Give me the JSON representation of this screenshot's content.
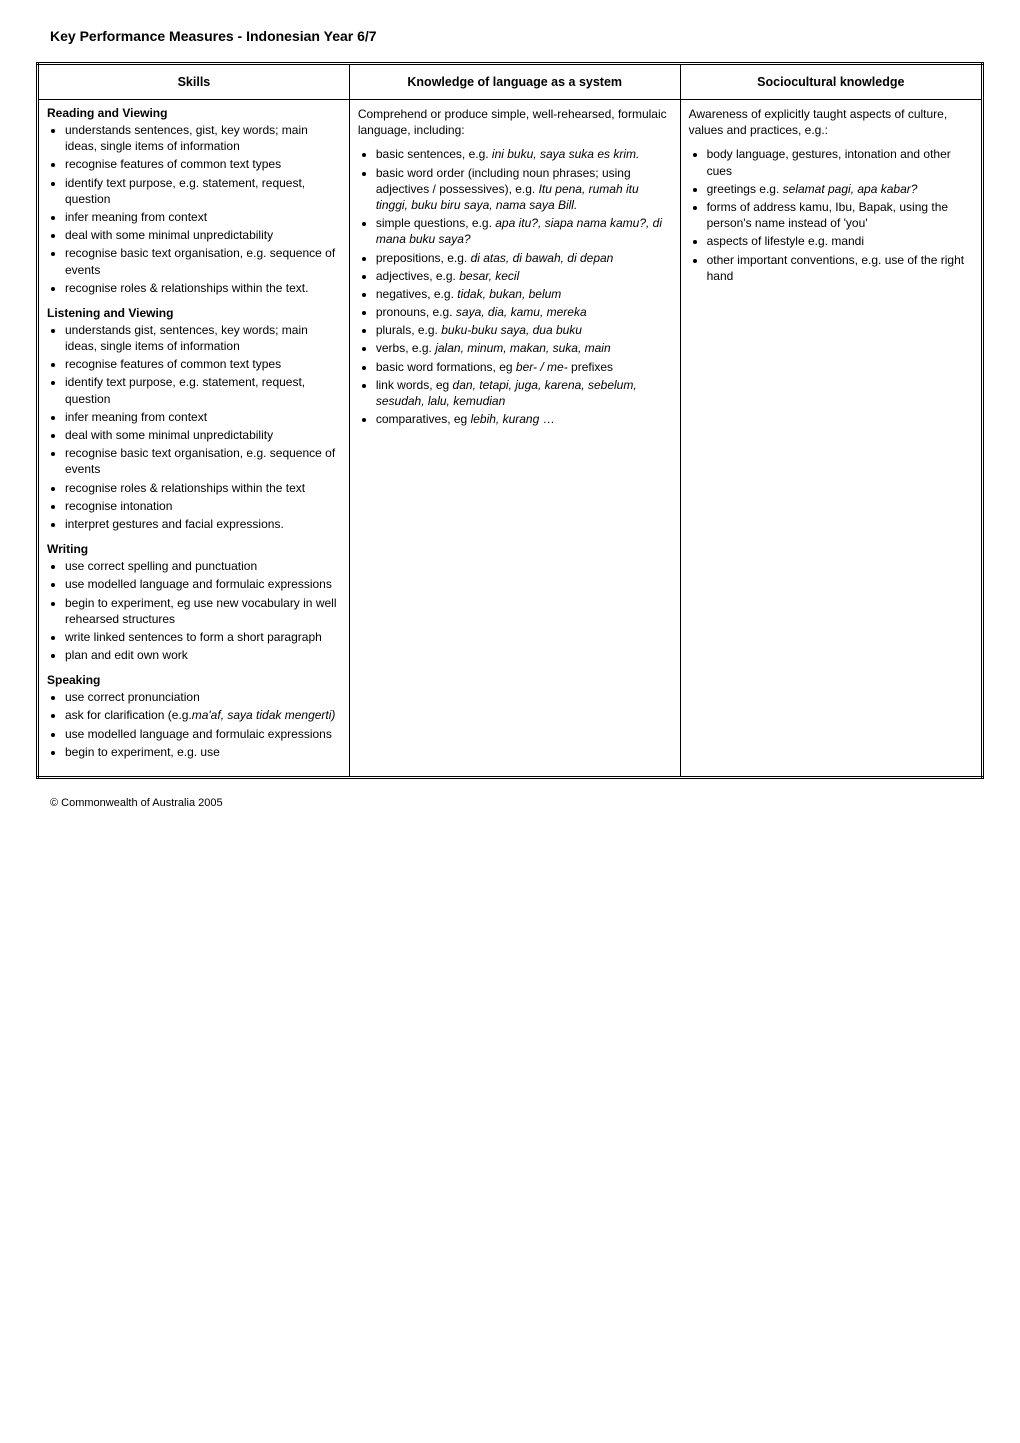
{
  "title": "Key Performance Measures - Indonesian Year 6/7",
  "headers": {
    "skills": "Skills",
    "knowledge": "Knowledge of language as a system",
    "socio": "Sociocultural knowledge"
  },
  "skills": {
    "reading": {
      "heading": "Reading and Viewing",
      "items": [
        "understands sentences, gist, key words; main ideas, single items of information",
        "recognise features of common text types",
        "identify text purpose, e.g. statement, request, question",
        "infer meaning from context",
        "deal with some minimal unpredictability",
        "recognise basic text organisation, e.g. sequence of events",
        "recognise roles & relationships within the text."
      ]
    },
    "listening": {
      "heading": "Listening and Viewing",
      "items": [
        "understands gist, sentences, key words; main ideas, single items of information",
        "recognise features of common text types",
        "identify text purpose, e.g. statement, request, question",
        "infer meaning from context",
        "deal with some minimal unpredictability",
        "recognise basic text organisation, e.g. sequence of events",
        "recognise roles & relationships within the text",
        "recognise intonation",
        "interpret gestures and facial expressions."
      ]
    },
    "writing": {
      "heading": "Writing",
      "items": [
        "use correct spelling and punctuation",
        "use modelled language and formulaic expressions",
        "begin to experiment, eg use new vocabulary in well rehearsed structures",
        "write linked sentences to form a short paragraph",
        "plan and edit own work"
      ]
    },
    "speaking": {
      "heading": "Speaking",
      "items": [
        "use correct pronunciation",
        "ask for clarification (e.g.<em class=\"ital\">ma'af, saya tidak mengerti)</em>",
        "use modelled language and formulaic expressions",
        "begin to experiment, e.g. use"
      ]
    }
  },
  "knowledge": {
    "intro": "Comprehend or produce simple, well-rehearsed, formulaic language, including:",
    "items": [
      "basic sentences, e.g. <em class=\"ital\">ini buku, saya suka es krim.</em>",
      "basic word order (including noun phrases; using adjectives / possessives), e.g. <em class=\"ital\">Itu pena, rumah itu tinggi, buku biru saya, nama saya Bill.</em>",
      "simple questions, e.g. <em class=\"ital\">apa itu?, siapa nama kamu?, di mana buku saya?</em>",
      "prepositions, e.g. <em class=\"ital\">di atas, di bawah, di depan</em>",
      "adjectives, e.g. <em class=\"ital\">besar, kecil</em>",
      "negatives, e.g. <em class=\"ital\">tidak, bukan, belum</em>",
      "pronouns, e.g. <em class=\"ital\">saya, dia, kamu, mereka</em>",
      "plurals, e.g. <em class=\"ital\">buku-buku saya, dua buku</em>",
      "verbs, e.g. <em class=\"ital\">jalan, minum, makan, suka, main</em>",
      "basic word formations, eg <em class=\"ital\">ber- / me-</em> prefixes",
      "link words, eg <em class=\"ital\">dan, tetapi, juga, karena, sebelum, sesudah, lalu, kemudian</em>",
      "comparatives, eg <em class=\"ital\">lebih, kurang</em> …"
    ]
  },
  "socio": {
    "intro": "Awareness of explicitly taught aspects of culture, values and practices, e.g.:",
    "items": [
      "body language, gestures, intonation and other cues",
      "greetings e.g. <em class=\"ital\">selamat pagi, apa kabar?</em>",
      "forms of address kamu, Ibu, Bapak, using the person's name instead of 'you'",
      "aspects of lifestyle e.g. mandi",
      "other important conventions, e.g. use of the right hand"
    ]
  },
  "footer": "© Commonwealth of Australia 2005"
}
